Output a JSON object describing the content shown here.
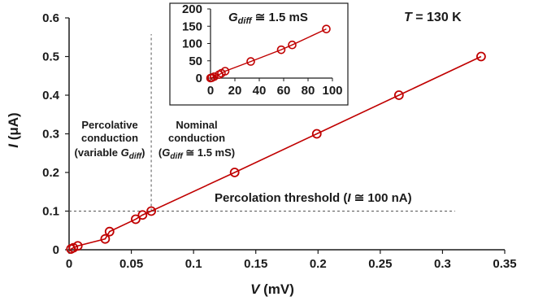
{
  "chart_data": [
    {
      "type": "line",
      "xlabel": {
        "main": "V",
        "unit": " (mV)"
      },
      "ylabel": {
        "main": "I",
        "unit": " (μA)"
      },
      "xlim": [
        0,
        0.35
      ],
      "ylim": [
        0,
        0.6
      ],
      "xticks": [
        "0",
        "0.05",
        "0.1",
        "0.15",
        "0.2",
        "0.25",
        "0.3",
        "0.35"
      ],
      "yticks": [
        "0",
        "0.1",
        "0.2",
        "0.3",
        "0.4",
        "0.5",
        "0.6"
      ],
      "series": [
        {
          "color": "#c00000",
          "marker": "open-circle",
          "x": [
            0.0015,
            0.0035,
            0.007,
            0.029,
            0.0325,
            0.0535,
            0.059,
            0.066,
            0.133,
            0.199,
            0.265,
            0.331
          ],
          "y": [
            0.002,
            0.005,
            0.01,
            0.028,
            0.047,
            0.079,
            0.09,
            0.1,
            0.2,
            0.3,
            0.4,
            0.5
          ]
        }
      ],
      "threshold": {
        "x": 0.066,
        "y": 0.1,
        "style": "dashed"
      },
      "annotations": {
        "temperature": {
          "symbol": "T",
          "text": " = 130 K"
        },
        "threshold_label": {
          "prefix": "Percolation threshold (",
          "symbol": "I",
          "suffix": " ≅ 100 nA)"
        },
        "percolative": {
          "line1": "Percolative",
          "line2": "conduction",
          "line3_prefix": "(variable ",
          "line3_symbol": "G",
          "line3_sub": "diff",
          "line3_suffix": ")"
        },
        "nominal": {
          "line1": "Nominal",
          "line2": "conduction",
          "line3_prefix": "(",
          "line3_symbol": "G",
          "line3_sub": "diff",
          "line3_suffix": " ≅ 1.5 mS)"
        }
      }
    },
    {
      "type": "line",
      "inset": true,
      "xlim": [
        0,
        100
      ],
      "ylim": [
        0,
        200
      ],
      "xticks": [
        "0",
        "20",
        "40",
        "60",
        "80",
        "100"
      ],
      "yticks": [
        "0",
        "50",
        "100",
        "150",
        "200"
      ],
      "series": [
        {
          "color": "#c00000",
          "marker": "open-circle",
          "x": [
            0,
            1,
            3,
            7,
            9,
            12,
            33,
            58,
            67,
            95
          ],
          "y": [
            0,
            1,
            4,
            10,
            14,
            20,
            48,
            82,
            96,
            142
          ]
        }
      ],
      "annotations": {
        "gdiff": {
          "symbol": "G",
          "sub": "diff",
          "suffix": " ≅ 1.5 mS"
        }
      }
    }
  ]
}
